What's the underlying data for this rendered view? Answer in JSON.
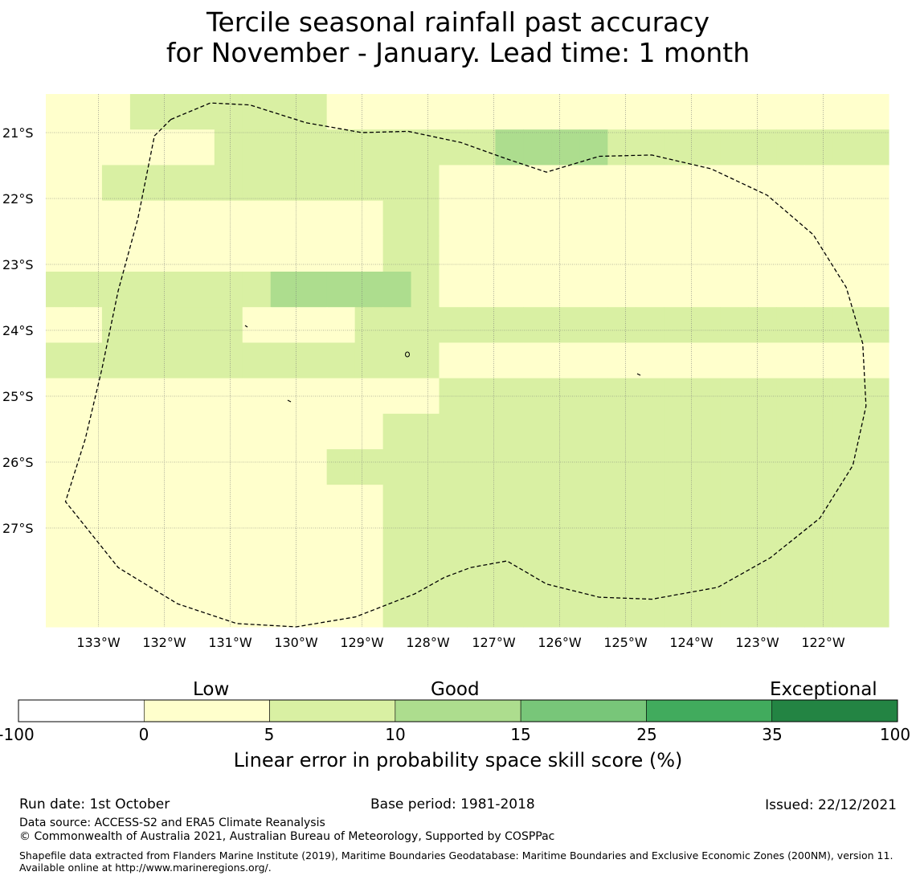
{
  "title": {
    "line1": "Tercile seasonal rainfall past accuracy",
    "line2": "for November - January. Lead time: 1 month"
  },
  "map": {
    "lat_labels": [
      "21°S",
      "22°S",
      "23°S",
      "24°S",
      "25°S",
      "26°S",
      "27°S"
    ],
    "lon_labels": [
      "133°W",
      "132°W",
      "131°W",
      "130°W",
      "129°W",
      "128°W",
      "127°W",
      "126°W",
      "125°W",
      "124°W",
      "123°W",
      "122°W"
    ],
    "grid_values": [
      [
        1,
        1,
        1,
        2,
        2,
        2,
        2,
        2,
        2,
        2,
        1,
        1,
        1,
        1,
        1,
        1,
        1,
        1,
        1,
        1,
        1,
        1,
        1,
        1,
        1,
        1,
        1,
        1,
        1,
        1
      ],
      [
        1,
        1,
        1,
        1,
        1,
        1,
        2,
        2,
        2,
        2,
        2,
        2,
        2,
        2,
        2,
        2,
        3,
        3,
        3,
        3,
        2,
        2,
        2,
        2,
        2,
        2,
        2,
        2,
        2,
        2
      ],
      [
        1,
        1,
        2,
        2,
        2,
        2,
        2,
        2,
        2,
        2,
        2,
        2,
        2,
        2,
        1,
        1,
        1,
        1,
        1,
        1,
        1,
        1,
        1,
        1,
        1,
        1,
        1,
        1,
        1,
        1
      ],
      [
        1,
        1,
        1,
        1,
        1,
        1,
        1,
        1,
        1,
        1,
        1,
        1,
        2,
        2,
        1,
        1,
        1,
        1,
        1,
        1,
        1,
        1,
        1,
        1,
        1,
        1,
        1,
        1,
        1,
        1
      ],
      [
        1,
        1,
        1,
        1,
        1,
        1,
        1,
        1,
        1,
        1,
        1,
        1,
        2,
        2,
        1,
        1,
        1,
        1,
        1,
        1,
        1,
        1,
        1,
        1,
        1,
        1,
        1,
        1,
        1,
        1
      ],
      [
        2,
        2,
        2,
        2,
        2,
        2,
        2,
        2,
        3,
        3,
        3,
        3,
        3,
        2,
        1,
        1,
        1,
        1,
        1,
        1,
        1,
        1,
        1,
        1,
        1,
        1,
        1,
        1,
        1,
        1
      ],
      [
        1,
        1,
        2,
        2,
        2,
        2,
        2,
        1,
        1,
        1,
        1,
        2,
        2,
        2,
        2,
        2,
        2,
        2,
        2,
        2,
        2,
        2,
        2,
        2,
        2,
        2,
        2,
        2,
        2,
        2
      ],
      [
        2,
        2,
        2,
        2,
        2,
        2,
        2,
        2,
        2,
        2,
        2,
        2,
        2,
        2,
        1,
        1,
        1,
        1,
        1,
        1,
        1,
        1,
        1,
        1,
        1,
        1,
        1,
        1,
        1,
        1
      ],
      [
        1,
        1,
        1,
        1,
        1,
        1,
        1,
        1,
        1,
        1,
        1,
        1,
        1,
        1,
        2,
        2,
        2,
        2,
        2,
        2,
        2,
        2,
        2,
        2,
        2,
        2,
        2,
        2,
        2,
        2
      ],
      [
        1,
        1,
        1,
        1,
        1,
        1,
        1,
        1,
        1,
        1,
        1,
        1,
        2,
        2,
        2,
        2,
        2,
        2,
        2,
        2,
        2,
        2,
        2,
        2,
        2,
        2,
        2,
        2,
        2,
        2
      ],
      [
        1,
        1,
        1,
        1,
        1,
        1,
        1,
        1,
        1,
        1,
        2,
        2,
        2,
        2,
        2,
        2,
        2,
        2,
        2,
        2,
        2,
        2,
        2,
        2,
        2,
        2,
        2,
        2,
        2,
        2
      ],
      [
        1,
        1,
        1,
        1,
        1,
        1,
        1,
        1,
        1,
        1,
        1,
        1,
        2,
        2,
        2,
        2,
        2,
        2,
        2,
        2,
        2,
        2,
        2,
        2,
        2,
        2,
        2,
        2,
        2,
        2
      ],
      [
        1,
        1,
        1,
        1,
        1,
        1,
        1,
        1,
        1,
        1,
        1,
        1,
        2,
        2,
        2,
        2,
        2,
        2,
        2,
        2,
        2,
        2,
        2,
        2,
        2,
        2,
        2,
        2,
        2,
        2
      ],
      [
        1,
        1,
        1,
        1,
        1,
        1,
        1,
        1,
        1,
        1,
        1,
        1,
        2,
        2,
        2,
        2,
        2,
        2,
        2,
        2,
        2,
        2,
        2,
        2,
        2,
        2,
        2,
        2,
        2,
        2
      ],
      [
        1,
        1,
        1,
        1,
        1,
        1,
        1,
        1,
        1,
        1,
        1,
        1,
        2,
        2,
        2,
        2,
        2,
        2,
        2,
        2,
        2,
        2,
        2,
        2,
        2,
        2,
        2,
        2,
        2,
        2
      ]
    ],
    "boundary_lonlat": [
      [
        -131.9,
        -20.8
      ],
      [
        -132.15,
        -21.05
      ],
      [
        -132.4,
        -22.3
      ],
      [
        -132.7,
        -23.4
      ],
      [
        -132.95,
        -24.6
      ],
      [
        -133.2,
        -25.65
      ],
      [
        -133.5,
        -26.6
      ],
      [
        -132.7,
        -27.6
      ],
      [
        -131.8,
        -28.15
      ],
      [
        -130.9,
        -28.45
      ],
      [
        -130.0,
        -28.5
      ],
      [
        -129.1,
        -28.35
      ],
      [
        -128.2,
        -28.0
      ],
      [
        -127.75,
        -27.75
      ],
      [
        -127.35,
        -27.6
      ],
      [
        -126.8,
        -27.5
      ],
      [
        -126.2,
        -27.85
      ],
      [
        -125.4,
        -28.05
      ],
      [
        -124.6,
        -28.08
      ],
      [
        -123.6,
        -27.9
      ],
      [
        -122.8,
        -27.45
      ],
      [
        -122.05,
        -26.85
      ],
      [
        -121.55,
        -26.05
      ],
      [
        -121.35,
        -25.15
      ],
      [
        -121.4,
        -24.2
      ],
      [
        -121.65,
        -23.35
      ],
      [
        -122.15,
        -22.55
      ],
      [
        -122.85,
        -21.95
      ],
      [
        -123.7,
        -21.55
      ],
      [
        -124.6,
        -21.34
      ],
      [
        -125.4,
        -21.36
      ],
      [
        -126.2,
        -21.6
      ],
      [
        -126.8,
        -21.4
      ],
      [
        -127.5,
        -21.15
      ],
      [
        -128.3,
        -20.98
      ],
      [
        -129.0,
        -21.0
      ],
      [
        -129.85,
        -20.85
      ],
      [
        -130.7,
        -20.58
      ],
      [
        -131.3,
        -20.55
      ],
      [
        -131.9,
        -20.8
      ]
    ]
  },
  "colorbar": {
    "words": [
      "Low",
      "Good",
      "Exceptional"
    ],
    "ticks": [
      "-100",
      "0",
      "5",
      "10",
      "15",
      "25",
      "35",
      "100"
    ],
    "colors": [
      "#ffffff",
      "#ffffcc",
      "#d9f0a3",
      "#addd8e",
      "#78c679",
      "#41ab5d",
      "#238443"
    ],
    "label": "Linear error in probability space skill score (%)"
  },
  "footer": {
    "run_date": "Run date: 1st October",
    "base_period": "Base period: 1981-2018",
    "issued": "Issued: 22/12/2021",
    "data_source": "Data source: ACCESS-S2 and ERA5 Climate Reanalysis",
    "copyright": "© Commonwealth of Australia 2021, Australian Bureau of Meteorology, Supported by COSPPac",
    "shapefile": "Shapefile data extracted from Flanders Marine Institute (2019), Maritime Boundaries Geodatabase: Maritime Boundaries and Exclusive Economic Zones (200NM), version 11. Available online at http://www.marineregions.org/."
  }
}
